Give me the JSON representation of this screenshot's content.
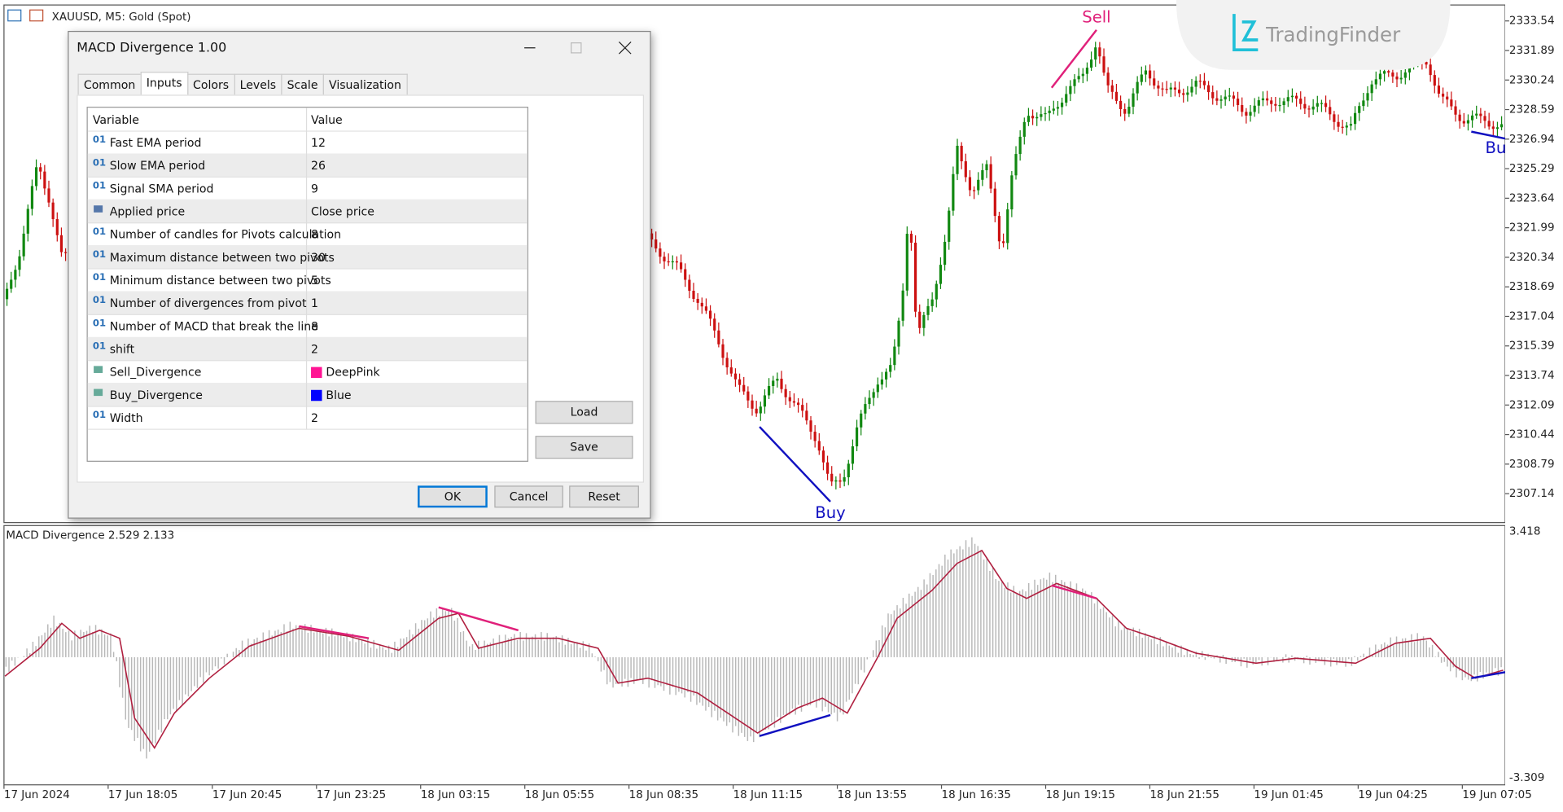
{
  "chart_window": {
    "symbol": "XAUUSD, M5:  Gold (Spot)",
    "watermark": "TradingFinder",
    "signals": {
      "sell": "Sell",
      "buy": "Buy",
      "buy_partial": "Bu"
    },
    "price_axis": [
      "2333.54",
      "2331.89",
      "2330.24",
      "2328.59",
      "2326.94",
      "2325.29",
      "2323.64",
      "2321.99",
      "2320.34",
      "2318.69",
      "2317.04",
      "2315.39",
      "2313.74",
      "2312.09",
      "2310.44",
      "2308.79",
      "2307.14"
    ],
    "indicator_label": "MACD Divergence 2.529 2.133",
    "indicator_axis": [
      "3.418",
      "-3.309"
    ],
    "time_axis": [
      "17 Jun 2024",
      "17 Jun 18:05",
      "17 Jun 20:45",
      "17 Jun 23:25",
      "18 Jun 03:15",
      "18 Jun 05:55",
      "18 Jun 08:35",
      "18 Jun 11:15",
      "18 Jun 13:55",
      "18 Jun 16:35",
      "18 Jun 19:15",
      "18 Jun 21:55",
      "19 Jun 01:45",
      "19 Jun 04:25",
      "19 Jun 07:05"
    ]
  },
  "dialog": {
    "title": "MACD Divergence 1.00",
    "tabs": [
      "Common",
      "Inputs",
      "Colors",
      "Levels",
      "Scale",
      "Visualization"
    ],
    "table": {
      "header": [
        "Variable",
        "Value"
      ],
      "rows": [
        {
          "icon": "01",
          "variable": "Fast EMA period",
          "value": "12"
        },
        {
          "icon": "01",
          "variable": "Slow EMA period",
          "value": "26"
        },
        {
          "icon": "01",
          "variable": "Signal SMA period",
          "value": "9"
        },
        {
          "variable": "Applied price",
          "value": "Close price"
        },
        {
          "icon": "01",
          "variable": "Number of candles for Pivots calculation",
          "value": "8"
        },
        {
          "icon": "01",
          "variable": "Maximum distance between two pivots",
          "value": "30"
        },
        {
          "icon": "01",
          "variable": "Minimum distance between two pivots",
          "value": "5"
        },
        {
          "icon": "01",
          "variable": "Number of divergences from pivot",
          "value": "1"
        },
        {
          "icon": "01",
          "variable": "Number of MACD that break the line",
          "value": "8"
        },
        {
          "icon": "01",
          "variable": "shift",
          "value": "2"
        },
        {
          "variable": "Sell_Divergence",
          "value": "DeepPink",
          "swatch": true
        },
        {
          "variable": "Buy_Divergence",
          "value": "Blue",
          "swatch": true
        },
        {
          "icon": "01",
          "variable": "Width",
          "value": "2"
        }
      ]
    },
    "buttons": {
      "load": "Load",
      "save": "Save",
      "ok": "OK",
      "cancel": "Cancel",
      "reset": "Reset"
    }
  }
}
